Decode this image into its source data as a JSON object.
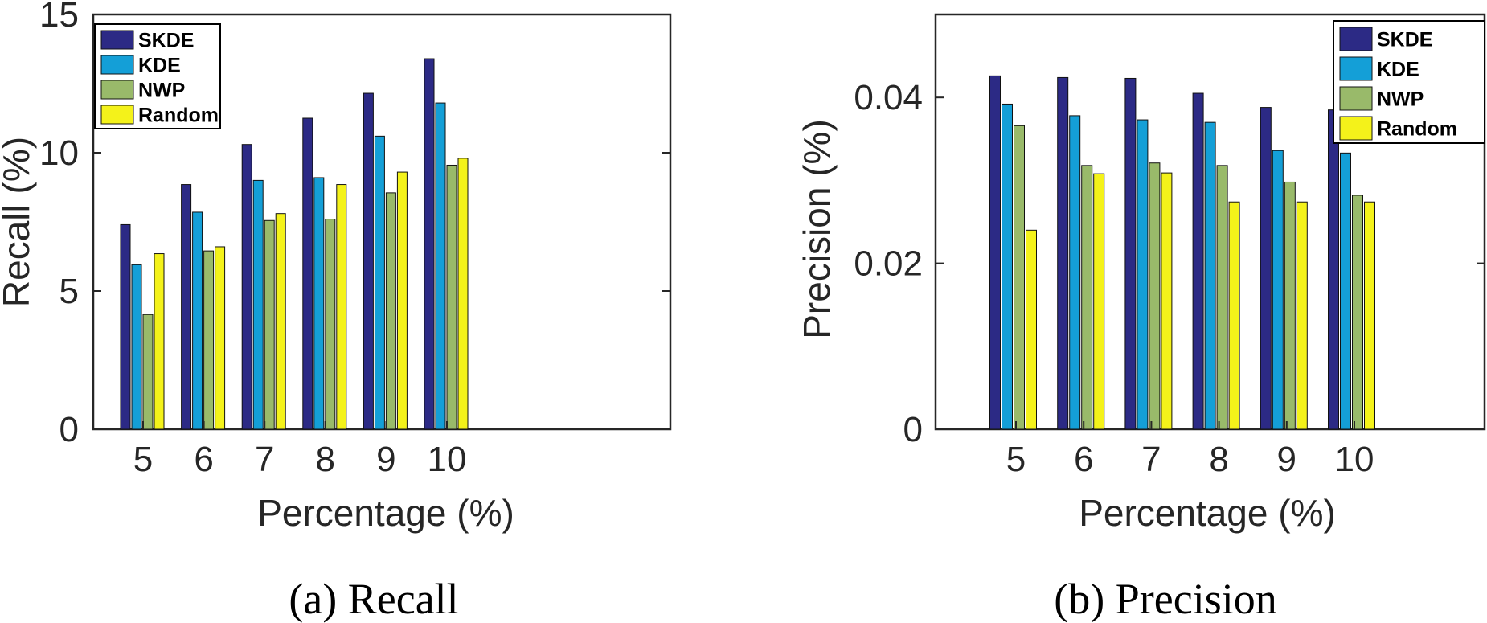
{
  "chart_data": [
    {
      "type": "bar",
      "categories": [
        "5",
        "6",
        "7",
        "8",
        "9",
        "10"
      ],
      "series": [
        {
          "name": "SKDE",
          "values": [
            7.4,
            8.85,
            10.3,
            11.25,
            12.15,
            13.4
          ]
        },
        {
          "name": "KDE",
          "values": [
            5.95,
            7.85,
            9.0,
            9.1,
            10.6,
            11.8
          ]
        },
        {
          "name": "NWP",
          "values": [
            4.15,
            6.45,
            7.55,
            7.6,
            8.55,
            9.55
          ]
        },
        {
          "name": "Random",
          "values": [
            6.35,
            6.6,
            7.8,
            8.85,
            9.3,
            9.8
          ]
        }
      ],
      "xlabel": "Percentage (%)",
      "ylabel": "Recall (%)",
      "ylim": [
        0,
        15
      ],
      "yticks": [
        "0",
        "5",
        "10",
        "15"
      ],
      "grid": false,
      "legend_position": "top-left",
      "caption": "(a)  Recall"
    },
    {
      "type": "bar",
      "categories": [
        "5",
        "6",
        "7",
        "8",
        "9",
        "10"
      ],
      "series": [
        {
          "name": "SKDE",
          "values": [
            0.0426,
            0.0424,
            0.0423,
            0.0405,
            0.0388,
            0.0385
          ]
        },
        {
          "name": "KDE",
          "values": [
            0.0392,
            0.0378,
            0.0373,
            0.037,
            0.0336,
            0.0333
          ]
        },
        {
          "name": "NWP",
          "values": [
            0.0366,
            0.0318,
            0.0321,
            0.0318,
            0.0298,
            0.0282
          ]
        },
        {
          "name": "Random",
          "values": [
            0.024,
            0.0308,
            0.0309,
            0.0274,
            0.0274,
            0.0274
          ]
        }
      ],
      "xlabel": "Percentage (%)",
      "ylabel": "Precision (%)",
      "ylim": [
        0,
        0.05
      ],
      "yticks": [
        "0",
        "0.02",
        "0.04"
      ],
      "grid": false,
      "legend_position": "top-right",
      "caption": "(b)  Precision"
    }
  ],
  "colors": {
    "SKDE": "#2c2a85",
    "KDE": "#149fd7",
    "NWP": "#99ba6a",
    "Random": "#f4f21a",
    "axis": "#262626"
  }
}
